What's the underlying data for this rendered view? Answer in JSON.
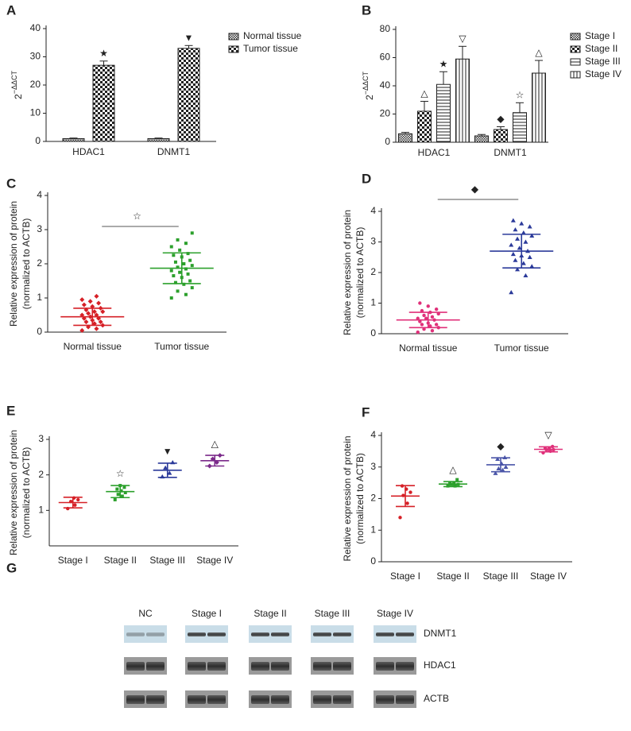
{
  "chart_data": [
    {
      "panel": "A",
      "type": "bar",
      "ylabel": "2",
      "ylabel_sup": "−ΔΔCT",
      "categories": [
        "HDAC1",
        "DNMT1"
      ],
      "series": [
        {
          "name": "Normal tissue",
          "pattern": "dense",
          "values": [
            1,
            1
          ],
          "errors": [
            0.2,
            0.2
          ],
          "markers": [
            null,
            null
          ]
        },
        {
          "name": "Tumor tissue",
          "pattern": "checker",
          "values": [
            27,
            33
          ],
          "errors": [
            1.5,
            1
          ],
          "markers": [
            "★",
            "▼"
          ]
        }
      ],
      "ylim": [
        0,
        40
      ],
      "yticks": [
        0,
        10,
        20,
        30,
        40
      ]
    },
    {
      "panel": "B",
      "type": "bar",
      "ylabel": "2",
      "ylabel_sup": "−ΔΔCT",
      "categories": [
        "HDAC1",
        "DNMT1"
      ],
      "series": [
        {
          "name": "Stage I",
          "pattern": "dense",
          "values": [
            6,
            4.5
          ],
          "errors": [
            1,
            1
          ],
          "markers": [
            null,
            null
          ]
        },
        {
          "name": "Stage II",
          "pattern": "checker",
          "values": [
            22,
            9
          ],
          "errors": [
            7,
            2
          ],
          "markers": [
            "△",
            "◆"
          ]
        },
        {
          "name": "Stage III",
          "pattern": "hlines",
          "values": [
            41,
            21
          ],
          "errors": [
            9,
            7
          ],
          "markers": [
            "★",
            "☆"
          ]
        },
        {
          "name": "Stage IV",
          "pattern": "vlines",
          "values": [
            59,
            49
          ],
          "errors": [
            9,
            9
          ],
          "markers": [
            "▽",
            "△"
          ]
        }
      ],
      "ylim": [
        0,
        80
      ],
      "yticks": [
        0,
        20,
        40,
        60,
        80
      ]
    },
    {
      "panel": "C",
      "type": "dot",
      "ylabel": [
        "Relative expression of protein",
        "(normalized to ACTB)"
      ],
      "significance": "☆",
      "groups": [
        {
          "name": "Normal tissue",
          "color": "#d62027",
          "marker": "diamond",
          "mean": 0.45,
          "sd": 0.25,
          "annotation": null,
          "points": [
            0.05,
            0.1,
            0.15,
            0.2,
            0.25,
            0.3,
            0.3,
            0.35,
            0.4,
            0.4,
            0.45,
            0.5,
            0.5,
            0.55,
            0.6,
            0.6,
            0.65,
            0.7,
            0.75,
            0.8,
            0.85,
            0.9,
            0.95,
            1.05
          ]
        },
        {
          "name": "Tumor tissue",
          "color": "#2ca02c",
          "marker": "square",
          "mean": 1.87,
          "sd": 0.45,
          "annotation": null,
          "points": [
            1.0,
            1.1,
            1.2,
            1.3,
            1.4,
            1.45,
            1.5,
            1.6,
            1.65,
            1.7,
            1.75,
            1.8,
            1.85,
            1.9,
            1.95,
            2.0,
            2.05,
            2.1,
            2.2,
            2.25,
            2.3,
            2.4,
            2.5,
            2.6,
            2.7,
            2.9
          ]
        }
      ],
      "ylim": [
        0,
        4
      ],
      "yticks": [
        0,
        1,
        2,
        3,
        4
      ]
    },
    {
      "panel": "D",
      "type": "dot",
      "ylabel": [
        "Relative expression of protein",
        "(normalized to ACTB)"
      ],
      "significance": "◆",
      "groups": [
        {
          "name": "Normal tissue",
          "color": "#e0307a",
          "marker": "circle",
          "mean": 0.45,
          "sd": 0.25,
          "annotation": null,
          "points": [
            0.05,
            0.1,
            0.15,
            0.2,
            0.25,
            0.3,
            0.3,
            0.35,
            0.4,
            0.45,
            0.5,
            0.5,
            0.55,
            0.6,
            0.65,
            0.7,
            0.75,
            0.8,
            0.9,
            1.0
          ]
        },
        {
          "name": "Tumor tissue",
          "color": "#2b3a9a",
          "marker": "triangle",
          "mean": 2.7,
          "sd": 0.55,
          "annotation": null,
          "points": [
            1.35,
            1.9,
            2.1,
            2.2,
            2.3,
            2.4,
            2.5,
            2.55,
            2.6,
            2.7,
            2.8,
            2.9,
            3.0,
            3.1,
            3.2,
            3.3,
            3.4,
            3.5,
            3.6,
            3.7
          ]
        }
      ],
      "ylim": [
        0,
        4
      ],
      "yticks": [
        0,
        1,
        2,
        3,
        4
      ]
    },
    {
      "panel": "E",
      "type": "dot",
      "ylabel": [
        "Relative expression of protein",
        "(normalized to ACTB)"
      ],
      "groups": [
        {
          "name": "Stage I",
          "color": "#d62027",
          "marker": "circle",
          "mean": 1.22,
          "sd": 0.15,
          "annotation": null,
          "points": [
            1.05,
            1.15,
            1.25,
            1.3,
            1.35
          ]
        },
        {
          "name": "Stage II",
          "color": "#2ca02c",
          "marker": "square",
          "mean": 1.53,
          "sd": 0.17,
          "annotation": "☆",
          "points": [
            1.3,
            1.4,
            1.45,
            1.5,
            1.55,
            1.6,
            1.65,
            1.7
          ]
        },
        {
          "name": "Stage III",
          "color": "#2b3a9a",
          "marker": "triangle",
          "mean": 2.13,
          "sd": 0.2,
          "annotation": "▼",
          "points": [
            1.95,
            2.05,
            2.2,
            2.35
          ]
        },
        {
          "name": "Stage IV",
          "color": "#7b2a8a",
          "marker": "diamond",
          "mean": 2.4,
          "sd": 0.15,
          "annotation": "△",
          "points": [
            2.25,
            2.35,
            2.45,
            2.55
          ]
        }
      ],
      "ylim": [
        0,
        3
      ],
      "yticks": [
        1,
        2,
        3
      ]
    },
    {
      "panel": "F",
      "type": "dot",
      "ylabel": [
        "Relative expression of protein",
        "(normalized to ACTB)"
      ],
      "groups": [
        {
          "name": "Stage I",
          "color": "#d62027",
          "marker": "circle",
          "mean": 2.08,
          "sd": 0.33,
          "annotation": null,
          "points": [
            1.4,
            1.85,
            2.1,
            2.2,
            2.3,
            2.4
          ]
        },
        {
          "name": "Stage II",
          "color": "#2ca02c",
          "marker": "square",
          "mean": 2.46,
          "sd": 0.08,
          "annotation": "△",
          "points": [
            2.4,
            2.4,
            2.45,
            2.45,
            2.5,
            2.5,
            2.6
          ]
        },
        {
          "name": "Stage III",
          "color": "#4a55a8",
          "marker": "triangle",
          "mean": 3.07,
          "sd": 0.22,
          "annotation": "◆",
          "points": [
            2.8,
            2.9,
            2.95,
            3.0,
            3.1,
            3.25,
            3.3
          ]
        },
        {
          "name": "Stage IV",
          "color": "#e0307a",
          "marker": "circle",
          "mean": 3.56,
          "sd": 0.08,
          "annotation": "▽",
          "points": [
            3.45,
            3.5,
            3.55,
            3.55,
            3.6,
            3.6,
            3.65
          ]
        }
      ],
      "ylim": [
        0,
        4
      ],
      "yticks": [
        0,
        1,
        2,
        3,
        4
      ]
    }
  ],
  "blot": {
    "panel": "G",
    "columns": [
      "NC",
      "Stage I",
      "Stage II",
      "Stage III",
      "Stage IV"
    ],
    "rows": [
      "DNMT1",
      "HDAC1",
      "ACTB"
    ]
  }
}
